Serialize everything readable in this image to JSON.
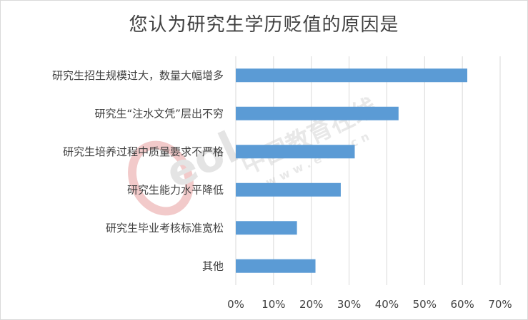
{
  "chart_data": {
    "type": "bar",
    "orientation": "horizontal",
    "title": "您认为研究生学历贬值的原因是",
    "categories": [
      "研究生招生规模过大，数量大幅增多",
      "研究生“注水文凭”层出不穷",
      "研究生培养过程中质量要求不严格",
      "研究生能力水平降低",
      "研究生毕业考核标准宽松",
      "其他"
    ],
    "values": [
      61.3,
      43.1,
      31.5,
      27.8,
      16.2,
      21.1
    ],
    "xlim": [
      0,
      70
    ],
    "xticks": [
      "0%",
      "10%",
      "20%",
      "30%",
      "40%",
      "50%",
      "60%",
      "70%"
    ],
    "xlabel": "",
    "ylabel": "",
    "grid": "vertical",
    "legend": "none",
    "bar_color": "#5b9bd5"
  },
  "watermark": {
    "logo_text": "eol",
    "cn_text": "中国教育在线",
    "url_text": "www.eol.cn"
  },
  "colors": {
    "bar": "#5b9bd5",
    "grid": "#d9d9d9",
    "text": "#404040",
    "watermark_red": "#e8a0a0",
    "watermark_gray": "#cfcfcf"
  }
}
